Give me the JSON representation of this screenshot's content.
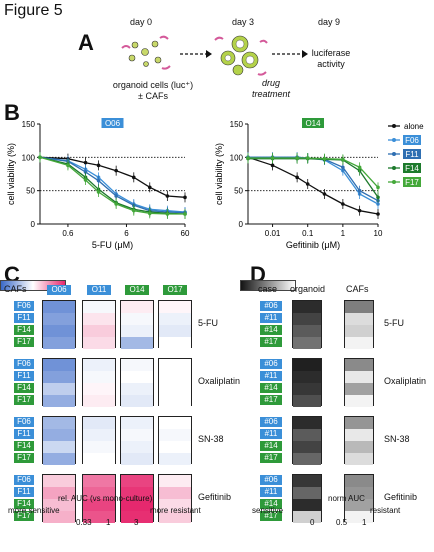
{
  "figure": {
    "title": "Figure 5"
  },
  "panelA": {
    "letter": "A",
    "steps": [
      {
        "day": "day 0",
        "caption_lines": [
          "organoid cells (luc⁺)",
          "± CAFs"
        ]
      },
      {
        "day": "day 3",
        "caption_lines": [
          "drug",
          "treatment"
        ]
      },
      {
        "day": "day 9",
        "caption_lines": [
          "luciferase",
          "activity"
        ]
      }
    ]
  },
  "panelB": {
    "letter": "B",
    "plots": [
      {
        "tag": "O06",
        "ylabel": "cell viability (%)",
        "xlabel": "5-FU (μM)",
        "xticks": [
          "0.6",
          "6",
          "60"
        ],
        "yticks": [
          "0",
          "50",
          "100",
          "150"
        ]
      },
      {
        "tag": "O14",
        "ylabel": "cell viability (%)",
        "xlabel": "Gefitinib (μM)",
        "xticks": [
          "0.01",
          "0.1",
          "1",
          "10"
        ],
        "yticks": [
          "0",
          "50",
          "100",
          "150"
        ]
      }
    ],
    "legend": [
      {
        "label": "alone",
        "color": "#111111"
      },
      {
        "label": "F06",
        "color": "#3b8fd8"
      },
      {
        "label": "F11",
        "color": "#2f6fb2"
      },
      {
        "label": "F14",
        "color": "#1d7a2c"
      },
      {
        "label": "F17",
        "color": "#44a83a"
      }
    ]
  },
  "panelC": {
    "letter": "C",
    "header_cafs": "CAFs",
    "columns": [
      "O06",
      "O11",
      "O14",
      "O17"
    ],
    "rows": [
      "F06",
      "F11",
      "F14",
      "F17"
    ],
    "drugs": [
      "5-FU",
      "Oxaliplatin",
      "SN-38",
      "Gefitinib"
    ],
    "colorbar_title": "rel. AUC (vs mono-culture)",
    "colorbar_left": "more sensitive",
    "colorbar_right": "more resistant",
    "colorbar_ticks": [
      "0.33",
      "1",
      "3"
    ],
    "values": [
      [
        [
          0.45,
          0.95,
          1.1,
          1.05
        ],
        [
          0.5,
          1.15,
          0.95,
          0.9
        ],
        [
          0.45,
          1.3,
          0.9,
          0.85
        ],
        [
          0.5,
          1.2,
          0.6,
          1.0
        ]
      ],
      [
        [
          0.45,
          0.9,
          0.95,
          1.0
        ],
        [
          0.5,
          0.95,
          1.0,
          1.0
        ],
        [
          0.7,
          1.05,
          0.9,
          1.0
        ],
        [
          0.55,
          1.1,
          0.85,
          1.0
        ]
      ],
      [
        [
          0.6,
          0.85,
          0.9,
          1.0
        ],
        [
          0.55,
          0.9,
          0.95,
          0.95
        ],
        [
          0.75,
          0.95,
          0.9,
          1.0
        ],
        [
          0.55,
          1.0,
          0.85,
          0.9
        ]
      ],
      [
        [
          1.3,
          2.0,
          2.6,
          1.1
        ],
        [
          1.6,
          2.2,
          2.8,
          1.4
        ],
        [
          1.4,
          2.6,
          3.0,
          1.2
        ],
        [
          1.5,
          2.4,
          2.9,
          1.3
        ]
      ]
    ]
  },
  "panelD": {
    "letter": "D",
    "header_case": "case",
    "header_organoid": "organoid",
    "header_cafs": "CAFs",
    "cases": [
      "#06",
      "#11",
      "#14",
      "#17"
    ],
    "drugs": [
      "5-FU",
      "Oxaliplatin",
      "SN-38",
      "Gefitinib"
    ],
    "colorbar_title": "norm AUC",
    "colorbar_left": "sensitive",
    "colorbar_right": "resistant",
    "colorbar_ticks": [
      "0",
      "0.5",
      "1"
    ],
    "values": [
      [
        [
          0.1,
          0.45
        ],
        [
          0.2,
          0.85
        ],
        [
          0.3,
          0.8
        ],
        [
          0.4,
          0.95
        ]
      ],
      [
        [
          0.05,
          0.5
        ],
        [
          0.1,
          0.9
        ],
        [
          0.15,
          0.6
        ],
        [
          0.25,
          0.95
        ]
      ],
      [
        [
          0.1,
          0.55
        ],
        [
          0.3,
          0.9
        ],
        [
          0.2,
          0.7
        ],
        [
          0.35,
          0.85
        ]
      ],
      [
        [
          0.15,
          0.5
        ],
        [
          0.35,
          0.55
        ],
        [
          0.1,
          0.6
        ],
        [
          0.8,
          0.95
        ]
      ]
    ]
  },
  "chart_data": [
    {
      "type": "line",
      "title": "O06",
      "xlabel": "5-FU (μM)",
      "ylabel": "cell viability (%)",
      "xscale": "log",
      "xlim": [
        0.2,
        60
      ],
      "ylim": [
        0,
        150
      ],
      "series": [
        {
          "name": "alone",
          "x": [
            0.2,
            0.6,
            1.2,
            2,
            4,
            8,
            15,
            30,
            60
          ],
          "y": [
            100,
            98,
            92,
            88,
            80,
            70,
            55,
            42,
            40
          ]
        },
        {
          "name": "F06",
          "x": [
            0.2,
            0.6,
            1.2,
            2,
            4,
            8,
            15,
            30,
            60
          ],
          "y": [
            100,
            95,
            82,
            70,
            45,
            30,
            22,
            20,
            18
          ]
        },
        {
          "name": "F11",
          "x": [
            0.2,
            0.6,
            1.2,
            2,
            4,
            8,
            15,
            30,
            60
          ],
          "y": [
            100,
            94,
            78,
            65,
            42,
            28,
            20,
            18,
            17
          ]
        },
        {
          "name": "F14",
          "x": [
            0.2,
            0.6,
            1.2,
            2,
            4,
            8,
            15,
            30,
            60
          ],
          "y": [
            100,
            90,
            70,
            52,
            32,
            22,
            18,
            16,
            15
          ]
        },
        {
          "name": "F17",
          "x": [
            0.2,
            0.6,
            1.2,
            2,
            4,
            8,
            15,
            30,
            60
          ],
          "y": [
            100,
            88,
            66,
            48,
            30,
            20,
            16,
            15,
            15
          ]
        }
      ]
    },
    {
      "type": "line",
      "title": "O14",
      "xlabel": "Gefitinib (μM)",
      "ylabel": "cell viability (%)",
      "xscale": "log",
      "xlim": [
        0.002,
        10
      ],
      "ylim": [
        0,
        150
      ],
      "series": [
        {
          "name": "alone",
          "x": [
            0.002,
            0.01,
            0.05,
            0.1,
            0.3,
            1,
            3,
            10
          ],
          "y": [
            100,
            88,
            70,
            60,
            45,
            30,
            20,
            15
          ]
        },
        {
          "name": "F06",
          "x": [
            0.002,
            0.01,
            0.05,
            0.1,
            0.3,
            1,
            3,
            10
          ],
          "y": [
            100,
            100,
            100,
            99,
            96,
            80,
            45,
            30
          ]
        },
        {
          "name": "F11",
          "x": [
            0.002,
            0.01,
            0.05,
            0.1,
            0.3,
            1,
            3,
            10
          ],
          "y": [
            100,
            100,
            100,
            99,
            97,
            85,
            50,
            35
          ]
        },
        {
          "name": "F14",
          "x": [
            0.002,
            0.01,
            0.05,
            0.1,
            0.3,
            1,
            3,
            10
          ],
          "y": [
            98,
            98,
            98,
            98,
            97,
            96,
            80,
            40
          ]
        },
        {
          "name": "F17",
          "x": [
            0.002,
            0.01,
            0.05,
            0.1,
            0.3,
            1,
            3,
            10
          ],
          "y": [
            99,
            99,
            99,
            99,
            98,
            97,
            85,
            55
          ]
        }
      ]
    }
  ]
}
